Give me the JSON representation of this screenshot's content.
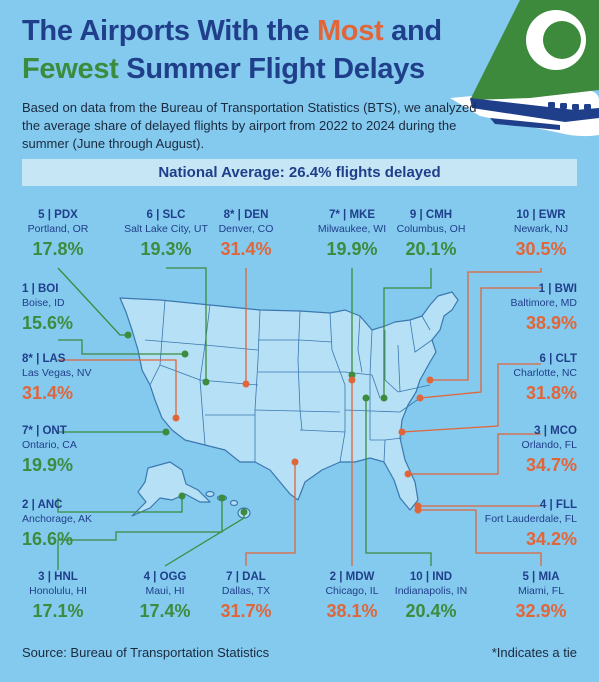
{
  "title": {
    "line1_prefix": "The Airports With the ",
    "line1_most": "Most",
    "line1_and": " and",
    "line2_fewest": "Fewest",
    "line2_rest": " Summer Flight Delays"
  },
  "intro": "Based on data from the Bureau of Transportation Statistics (BTS), we analyzed the average share of delayed flights by airport from 2022 to 2024 during the summer (June through August).",
  "banner": "National Average: 26.4% flights delayed",
  "colors": {
    "background": "#84c9ee",
    "navy": "#1f3f8a",
    "few_delays": "#3b8c3e",
    "most_delays": "#e0663a",
    "map_fill": "#b5e0f5",
    "map_border": "#3b78b0"
  },
  "airports": [
    {
      "id": "pdx",
      "code": "5 | PDX",
      "city": "Portland, OR",
      "pct": "17.8%",
      "group": "fewest"
    },
    {
      "id": "slc",
      "code": "6 | SLC",
      "city": "Salt Lake City, UT",
      "pct": "19.3%",
      "group": "fewest"
    },
    {
      "id": "den",
      "code": "8* | DEN",
      "city": "Denver, CO",
      "pct": "31.4%",
      "group": "most"
    },
    {
      "id": "mke",
      "code": "7* | MKE",
      "city": "Milwaukee, WI",
      "pct": "19.9%",
      "group": "fewest"
    },
    {
      "id": "cmh",
      "code": "9 | CMH",
      "city": "Columbus, OH",
      "pct": "20.1%",
      "group": "fewest"
    },
    {
      "id": "ewr",
      "code": "10 | EWR",
      "city": "Newark, NJ",
      "pct": "30.5%",
      "group": "most"
    },
    {
      "id": "boi",
      "code": "1 | BOI",
      "city": "Boise, ID",
      "pct": "15.6%",
      "group": "fewest"
    },
    {
      "id": "bwi",
      "code": "1 | BWI",
      "city": "Baltimore, MD",
      "pct": "38.9%",
      "group": "most"
    },
    {
      "id": "las",
      "code": "8* | LAS",
      "city": "Las Vegas, NV",
      "pct": "31.4%",
      "group": "most"
    },
    {
      "id": "clt",
      "code": "6 | CLT",
      "city": "Charlotte, NC",
      "pct": "31.8%",
      "group": "most"
    },
    {
      "id": "ont",
      "code": "7* | ONT",
      "city": "Ontario, CA",
      "pct": "19.9%",
      "group": "fewest"
    },
    {
      "id": "mco",
      "code": "3 | MCO",
      "city": "Orlando, FL",
      "pct": "34.7%",
      "group": "most"
    },
    {
      "id": "anc",
      "code": "2 | ANC",
      "city": "Anchorage, AK",
      "pct": "16.6%",
      "group": "fewest"
    },
    {
      "id": "fll",
      "code": "4 | FLL",
      "city": "Fort Lauderdale, FL",
      "pct": "34.2%",
      "group": "most"
    },
    {
      "id": "hnl",
      "code": "3 | HNL",
      "city": "Honolulu, HI",
      "pct": "17.1%",
      "group": "fewest"
    },
    {
      "id": "ogg",
      "code": "4 | OGG",
      "city": "Maui, HI",
      "pct": "17.4%",
      "group": "fewest"
    },
    {
      "id": "dal",
      "code": "7 | DAL",
      "city": "Dallas, TX",
      "pct": "31.7%",
      "group": "most"
    },
    {
      "id": "mdw",
      "code": "2 | MDW",
      "city": "Chicago, IL",
      "pct": "38.1%",
      "group": "most"
    },
    {
      "id": "ind",
      "code": "10 | IND",
      "city": "Indianapolis, IN",
      "pct": "20.4%",
      "group": "fewest"
    },
    {
      "id": "mia",
      "code": "5 | MIA",
      "city": "Miami, FL",
      "pct": "32.9%",
      "group": "most"
    }
  ],
  "source": "Source: Bureau of Transportation Statistics",
  "footnote": "*Indicates a tie"
}
